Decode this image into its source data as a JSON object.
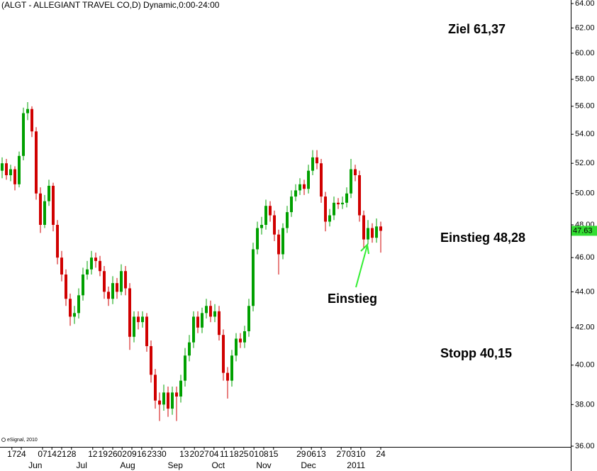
{
  "chart_data": {
    "type": "candlestick",
    "title": "(ALGT - ALLEGIANT TRAVEL CO,D) Dynamic,0:00-24:00",
    "credit": "eSignal, 2010",
    "log_scale": true,
    "up_color": "#00a000",
    "down_color": "#d00000",
    "ylim": [
      36,
      64
    ],
    "yticks": [
      {
        "value": 64,
        "label": "64.00"
      },
      {
        "value": 62,
        "label": "62.00"
      },
      {
        "value": 60,
        "label": "60.00"
      },
      {
        "value": 58,
        "label": "58.00"
      },
      {
        "value": 56,
        "label": "56.00"
      },
      {
        "value": 54,
        "label": "54.00"
      },
      {
        "value": 52,
        "label": "52.00"
      },
      {
        "value": 50,
        "label": "50.00"
      },
      {
        "value": 48,
        "label": "48.00"
      },
      {
        "value": 46,
        "label": "46.00"
      },
      {
        "value": 44,
        "label": "44.00"
      },
      {
        "value": 42,
        "label": "42.00"
      },
      {
        "value": 40,
        "label": "40.00"
      },
      {
        "value": 38,
        "label": "38.00"
      },
      {
        "value": 36,
        "label": "36.00"
      }
    ],
    "xticks": [
      {
        "value": 2.3,
        "label": "17"
      },
      {
        "value": 4.5,
        "label": "24"
      },
      {
        "value": 9.5,
        "label": "07"
      },
      {
        "value": 11.7,
        "label": "14"
      },
      {
        "value": 14,
        "label": "21"
      },
      {
        "value": 16.3,
        "label": "28"
      },
      {
        "value": 21.3,
        "label": "12"
      },
      {
        "value": 23.7,
        "label": "19"
      },
      {
        "value": 26,
        "label": "26"
      },
      {
        "value": 28.2,
        "label": "02"
      },
      {
        "value": 30.5,
        "label": "09"
      },
      {
        "value": 32.8,
        "label": "16"
      },
      {
        "value": 35.2,
        "label": "23"
      },
      {
        "value": 37.5,
        "label": "30"
      },
      {
        "value": 42.8,
        "label": "13"
      },
      {
        "value": 45.2,
        "label": "20"
      },
      {
        "value": 47.5,
        "label": "27"
      },
      {
        "value": 49.8,
        "label": "04"
      },
      {
        "value": 52.2,
        "label": "11"
      },
      {
        "value": 54.5,
        "label": "18"
      },
      {
        "value": 56.8,
        "label": "25"
      },
      {
        "value": 59.2,
        "label": "01"
      },
      {
        "value": 61.5,
        "label": "08"
      },
      {
        "value": 63.8,
        "label": "15"
      },
      {
        "value": 70.3,
        "label": "29"
      },
      {
        "value": 72.7,
        "label": "06"
      },
      {
        "value": 75,
        "label": "13"
      },
      {
        "value": 79.7,
        "label": "27"
      },
      {
        "value": 82,
        "label": "03"
      },
      {
        "value": 84.3,
        "label": "10"
      },
      {
        "value": 89,
        "label": "24"
      }
    ],
    "month_ticks": [
      {
        "value": 7.8,
        "label": "Jun"
      },
      {
        "value": 18.7,
        "label": "Jul"
      },
      {
        "value": 29.5,
        "label": "Aug"
      },
      {
        "value": 40.7,
        "label": "Sep"
      },
      {
        "value": 50.8,
        "label": "Oct"
      },
      {
        "value": 61.5,
        "label": "Nov"
      },
      {
        "value": 72,
        "label": "Dec"
      },
      {
        "value": 83.2,
        "label": "2011"
      }
    ],
    "candles": [
      [
        51.5,
        52.4,
        51.0,
        52
      ],
      [
        52,
        52.3,
        50.9,
        51.2
      ],
      [
        51.2,
        51.9,
        50.8,
        51.6
      ],
      [
        51.6,
        51.8,
        50.2,
        50.6
      ],
      [
        50.6,
        52.8,
        50.4,
        52.5
      ],
      [
        52.5,
        55.9,
        52.2,
        55.5
      ],
      [
        55.5,
        56.3,
        55.0,
        55.8
      ],
      [
        55.8,
        56.0,
        53.8,
        54.2
      ],
      [
        54.2,
        54.5,
        49.6,
        50
      ],
      [
        50,
        50.4,
        47.5,
        48
      ],
      [
        48,
        49.9,
        47.8,
        49.5
      ],
      [
        49.5,
        50.9,
        49.2,
        50.5
      ],
      [
        50.5,
        50.7,
        47.6,
        48
      ],
      [
        48,
        48.3,
        45.6,
        46
      ],
      [
        46,
        46.4,
        44.6,
        45
      ],
      [
        45,
        45.3,
        43.2,
        43.6
      ],
      [
        43.6,
        43.9,
        42.1,
        42.6
      ],
      [
        42.6,
        43.2,
        42.2,
        42.8
      ],
      [
        42.8,
        44.2,
        42.5,
        43.8
      ],
      [
        43.8,
        45.4,
        43.5,
        45
      ],
      [
        45,
        45.8,
        44.7,
        45.3
      ],
      [
        45.3,
        46.4,
        45.0,
        46
      ],
      [
        46,
        46.3,
        45.4,
        45.8
      ],
      [
        45.8,
        46.1,
        44.9,
        45.2
      ],
      [
        45.2,
        45.5,
        43.6,
        44
      ],
      [
        44,
        44.3,
        43.2,
        43.6
      ],
      [
        43.6,
        44.9,
        43.3,
        44.5
      ],
      [
        44.5,
        44.8,
        43.6,
        44
      ],
      [
        44,
        45.6,
        43.8,
        45.2
      ],
      [
        45.2,
        45.5,
        43.8,
        44.2
      ],
      [
        44.2,
        44.5,
        40.8,
        41.5
      ],
      [
        41.5,
        42.9,
        41.2,
        42.6
      ],
      [
        42.6,
        42.9,
        41.9,
        42.3
      ],
      [
        42.3,
        42.9,
        42.0,
        42.6
      ],
      [
        42.6,
        42.8,
        40.7,
        41
      ],
      [
        41,
        41.3,
        39.1,
        39.5
      ],
      [
        39.5,
        39.8,
        37.8,
        38.2
      ],
      [
        38.2,
        38.6,
        37.2,
        38
      ],
      [
        38,
        39.0,
        37.7,
        38.6
      ],
      [
        38.6,
        38.9,
        37.4,
        37.8
      ],
      [
        37.8,
        38.9,
        37.5,
        38.6
      ],
      [
        38.6,
        38.9,
        37.2,
        38.4
      ],
      [
        38.4,
        39.5,
        38.1,
        39.2
      ],
      [
        39.2,
        40.9,
        38.9,
        40.5
      ],
      [
        40.5,
        41.6,
        40.2,
        41.2
      ],
      [
        41.2,
        42.9,
        40.9,
        42.6
      ],
      [
        42.6,
        42.9,
        41.7,
        42
      ],
      [
        42,
        43.1,
        41.7,
        42.8
      ],
      [
        42.8,
        43.6,
        42.5,
        43.2
      ],
      [
        43.2,
        43.5,
        42.3,
        42.6
      ],
      [
        42.6,
        43.3,
        42.3,
        42.9
      ],
      [
        42.9,
        43.2,
        41.3,
        41.6
      ],
      [
        41.6,
        41.9,
        39.2,
        39.6
      ],
      [
        39.6,
        39.9,
        38.3,
        39.2
      ],
      [
        39.2,
        40.8,
        38.9,
        40.5
      ],
      [
        40.5,
        41.7,
        40.2,
        41.4
      ],
      [
        41.4,
        41.7,
        40.9,
        41.2
      ],
      [
        41.2,
        42.1,
        40.9,
        41.8
      ],
      [
        41.8,
        43.6,
        41.5,
        43.2
      ],
      [
        43.2,
        46.9,
        42.9,
        46.5
      ],
      [
        46.5,
        48.2,
        46.2,
        47.8
      ],
      [
        47.8,
        48.5,
        47.4,
        48
      ],
      [
        48,
        49.6,
        47.7,
        49.2
      ],
      [
        49.2,
        49.5,
        48.2,
        48.6
      ],
      [
        48.6,
        48.9,
        47.0,
        47.4
      ],
      [
        47.4,
        47.7,
        45.0,
        46.2
      ],
      [
        46.2,
        48.1,
        45.9,
        47.8
      ],
      [
        47.8,
        49.2,
        47.5,
        48.8
      ],
      [
        48.8,
        50.2,
        48.5,
        49.8
      ],
      [
        49.8,
        50.6,
        49.5,
        50.2
      ],
      [
        50.2,
        51.0,
        49.9,
        50.6
      ],
      [
        50.6,
        50.9,
        49.9,
        50.3
      ],
      [
        50.3,
        51.9,
        50.0,
        51.5
      ],
      [
        51.5,
        52.9,
        51.2,
        52.4
      ],
      [
        52.4,
        52.9,
        51.6,
        52
      ],
      [
        52,
        52.3,
        49.4,
        49.8
      ],
      [
        49.8,
        50.1,
        47.6,
        48.2
      ],
      [
        48.2,
        49.0,
        47.9,
        48.6
      ],
      [
        48.6,
        49.8,
        48.3,
        49.4
      ],
      [
        49.4,
        49.7,
        49.0,
        49.3
      ],
      [
        49.3,
        49.8,
        49.0,
        49.4
      ],
      [
        49.4,
        50.4,
        49.1,
        50
      ],
      [
        50,
        52.3,
        49.7,
        51.6
      ],
      [
        51.6,
        51.9,
        50.8,
        51.2
      ],
      [
        51.2,
        51.5,
        48.2,
        48.6
      ],
      [
        48.6,
        48.9,
        46.6,
        47.1
      ],
      [
        47.1,
        48.3,
        46.8,
        47.8
      ],
      [
        47.8,
        48.1,
        46.9,
        47.2
      ],
      [
        47.2,
        48.4,
        46.9,
        47.9
      ],
      [
        47.9,
        48.2,
        46.3,
        47.63
      ]
    ],
    "annotations": [
      {
        "text": "Ziel 61,37",
        "color": "#008000"
      },
      {
        "text": "Einstieg 48,28",
        "color": "#0000cc"
      },
      {
        "text": "Stopp 40,15",
        "color": "#e00000"
      },
      {
        "text": "Einstieg",
        "color": "#33ee33"
      }
    ]
  }
}
